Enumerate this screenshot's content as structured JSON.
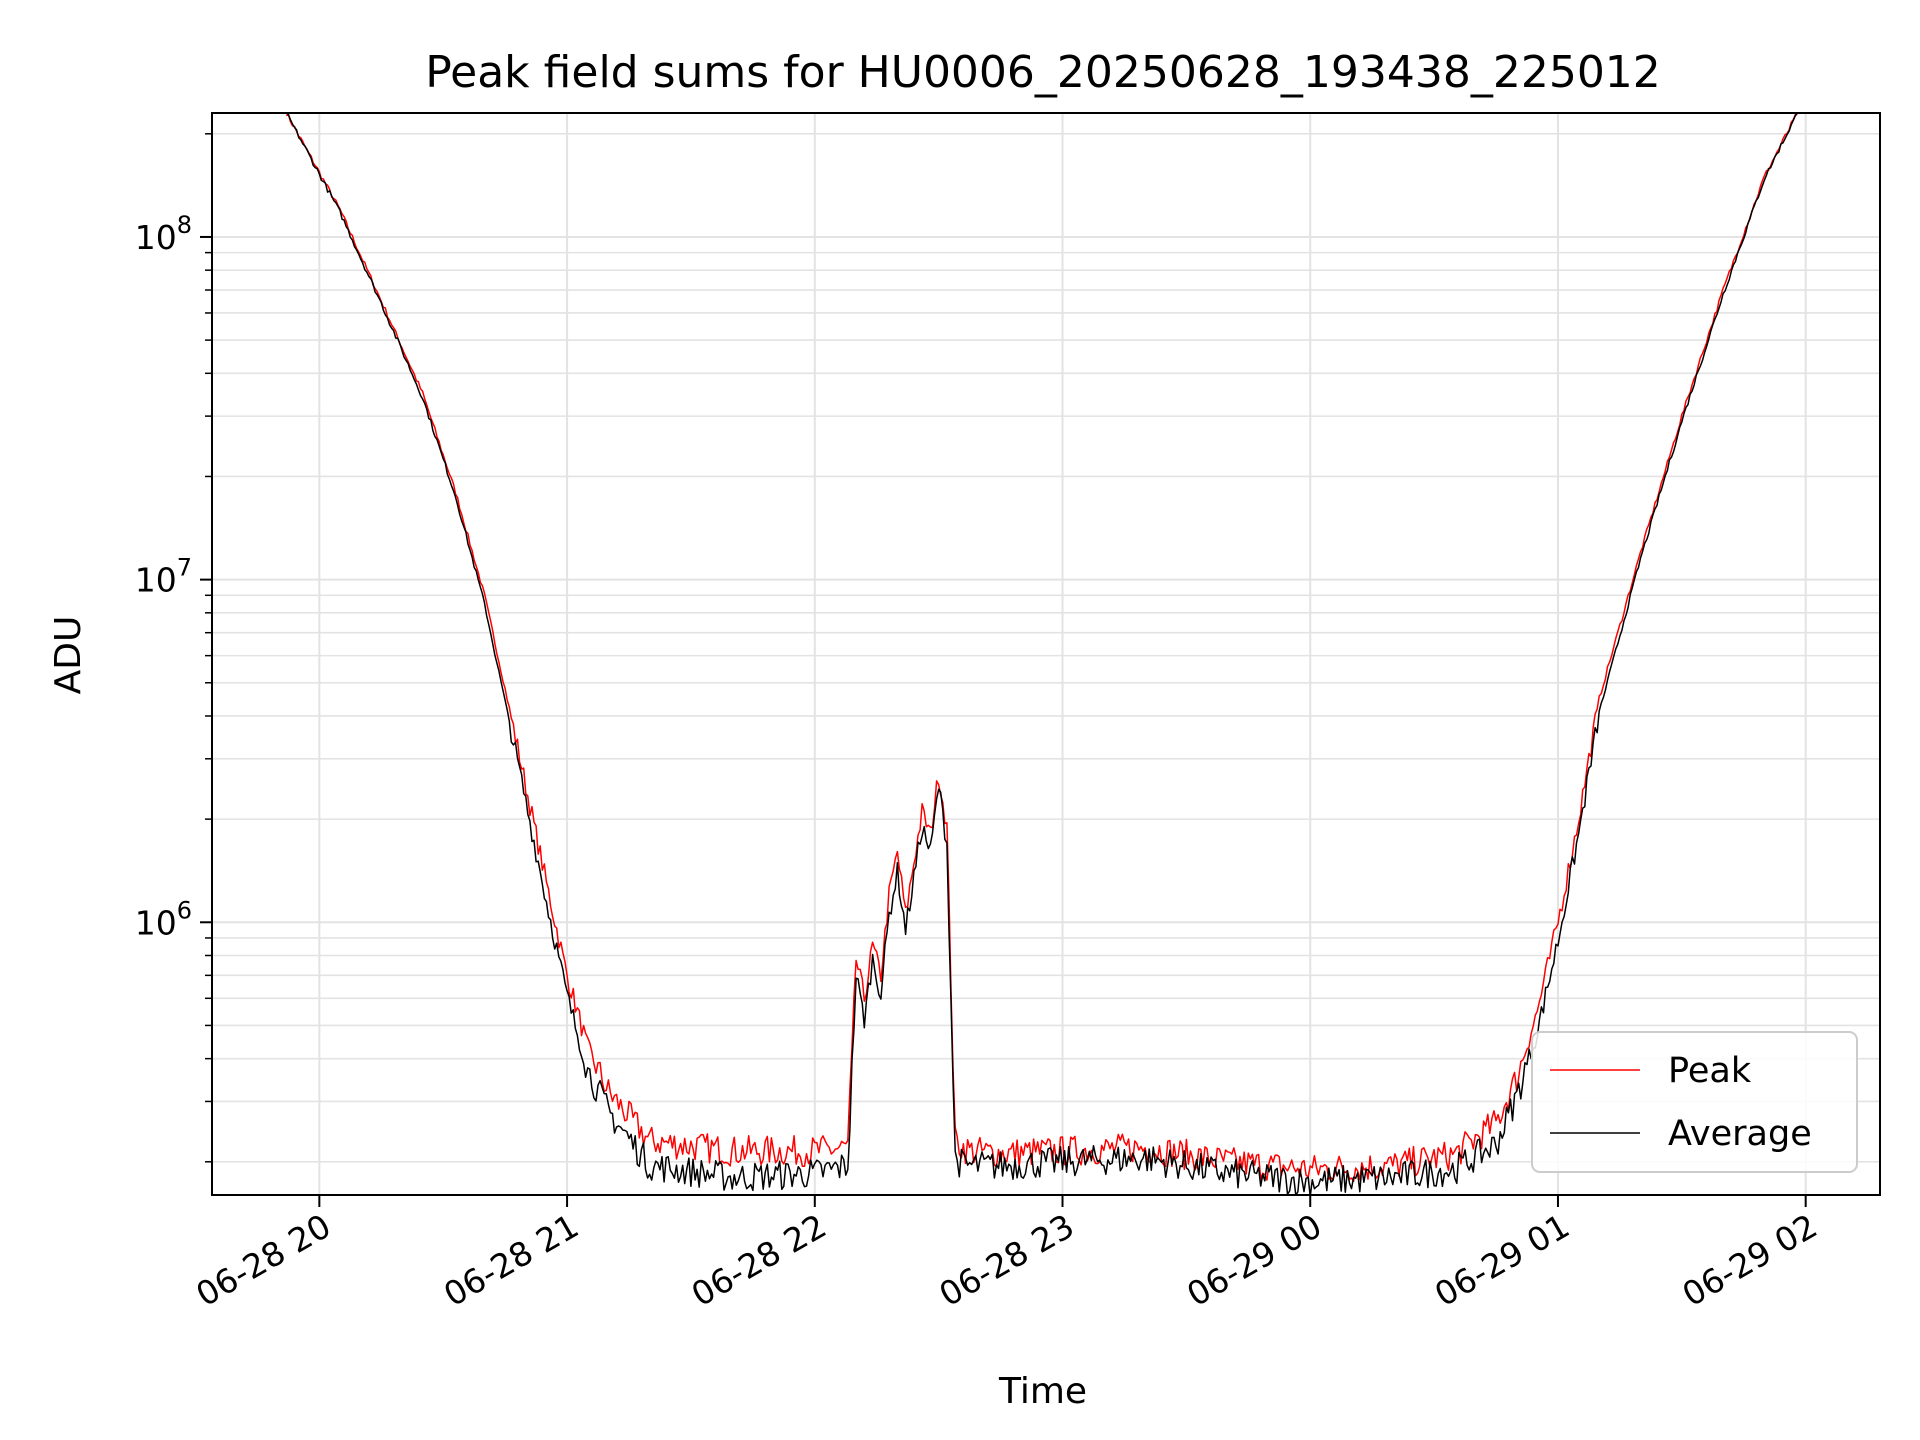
{
  "chart_data": {
    "type": "line",
    "title": "Peak field sums for HU0006_20250628_193438_225012",
    "xlabel": "Time",
    "ylabel": "ADU",
    "yscale": "log",
    "ylim": [
      160000,
      230000000
    ],
    "xlim": [
      "06-28 19:34",
      "06-29 02:18"
    ],
    "grid": true,
    "legend_position": "lower-right",
    "x_tick_labels": [
      "06-28 20",
      "06-28 21",
      "06-28 22",
      "06-28 23",
      "06-29 00",
      "06-29 01",
      "06-29 02"
    ],
    "y_tick_labels": [
      {
        "base": "10",
        "exp": "6",
        "value": 1000000
      },
      {
        "base": "10",
        "exp": "7",
        "value": 10000000
      },
      {
        "base": "10",
        "exp": "8",
        "value": 100000000
      }
    ],
    "series": [
      {
        "name": "Peak",
        "color": "#ff0000",
        "x": [
          "06-28 19:52",
          "06-28 20:05",
          "06-28 20:15",
          "06-28 20:25",
          "06-28 20:33",
          "06-28 20:40",
          "06-28 20:45",
          "06-28 20:50",
          "06-28 20:55",
          "06-28 21:00",
          "06-28 21:05",
          "06-28 21:10",
          "06-28 21:20",
          "06-28 21:40",
          "06-28 22:00",
          "06-28 22:08",
          "06-28 22:10",
          "06-28 22:12",
          "06-28 22:14",
          "06-28 22:16",
          "06-28 22:18",
          "06-28 22:20",
          "06-28 22:22",
          "06-28 22:24",
          "06-28 22:26",
          "06-28 22:28",
          "06-28 22:30",
          "06-28 22:32",
          "06-28 22:34",
          "06-28 22:36",
          "06-28 22:38",
          "06-28 22:45",
          "06-28 23:00",
          "06-28 23:20",
          "06-28 23:40",
          "06-29 00:00",
          "06-29 00:20",
          "06-29 00:35",
          "06-29 00:45",
          "06-29 00:50",
          "06-29 00:55",
          "06-29 01:00",
          "06-29 01:05",
          "06-29 01:10",
          "06-29 01:20",
          "06-29 01:30",
          "06-29 01:40",
          "06-29 01:50",
          "06-29 01:58"
        ],
        "y": [
          230000000,
          120000000,
          65000000,
          35000000,
          18000000,
          9000000,
          4800000,
          2500000,
          1300000,
          700000,
          430000,
          320000,
          230000,
          215000,
          215000,
          220000,
          780000,
          600000,
          850000,
          700000,
          1200000,
          1600000,
          1050000,
          1500000,
          2100000,
          1800000,
          2700000,
          1900000,
          230000,
          220000,
          215000,
          212000,
          215000,
          220000,
          200000,
          190000,
          195000,
          210000,
          260000,
          350000,
          550000,
          1000000,
          2000000,
          4500000,
          12000000,
          30000000,
          70000000,
          150000000,
          230000000
        ]
      },
      {
        "name": "Average",
        "color": "#000000",
        "x": [
          "06-28 19:52",
          "06-28 20:05",
          "06-28 20:15",
          "06-28 20:25",
          "06-28 20:33",
          "06-28 20:40",
          "06-28 20:45",
          "06-28 20:50",
          "06-28 20:55",
          "06-28 21:00",
          "06-28 21:05",
          "06-28 21:10",
          "06-28 21:20",
          "06-28 21:40",
          "06-28 22:00",
          "06-28 22:08",
          "06-28 22:10",
          "06-28 22:12",
          "06-28 22:14",
          "06-28 22:16",
          "06-28 22:18",
          "06-28 22:20",
          "06-28 22:22",
          "06-28 22:24",
          "06-28 22:26",
          "06-28 22:28",
          "06-28 22:30",
          "06-28 22:32",
          "06-28 22:34",
          "06-28 22:36",
          "06-28 22:38",
          "06-28 22:45",
          "06-28 23:00",
          "06-28 23:20",
          "06-28 23:40",
          "06-29 00:00",
          "06-29 00:20",
          "06-29 00:35",
          "06-29 00:45",
          "06-29 00:50",
          "06-29 00:55",
          "06-29 01:00",
          "06-29 01:05",
          "06-29 01:10",
          "06-29 01:20",
          "06-29 01:30",
          "06-29 01:40",
          "06-29 01:50",
          "06-29 01:58"
        ],
        "y": [
          230000000,
          118000000,
          64000000,
          34000000,
          17500000,
          8500000,
          4400000,
          2250000,
          1150000,
          610000,
          370000,
          280000,
          195000,
          180000,
          185000,
          195000,
          700000,
          520000,
          780000,
          620000,
          1050000,
          1400000,
          950000,
          1350000,
          1900000,
          1600000,
          2500000,
          1700000,
          205000,
          195000,
          195000,
          195000,
          200000,
          205000,
          185000,
          175000,
          180000,
          190000,
          225000,
          310000,
          480000,
          880000,
          1800000,
          4100000,
          11500000,
          29000000,
          68000000,
          148000000,
          230000000
        ]
      }
    ]
  }
}
